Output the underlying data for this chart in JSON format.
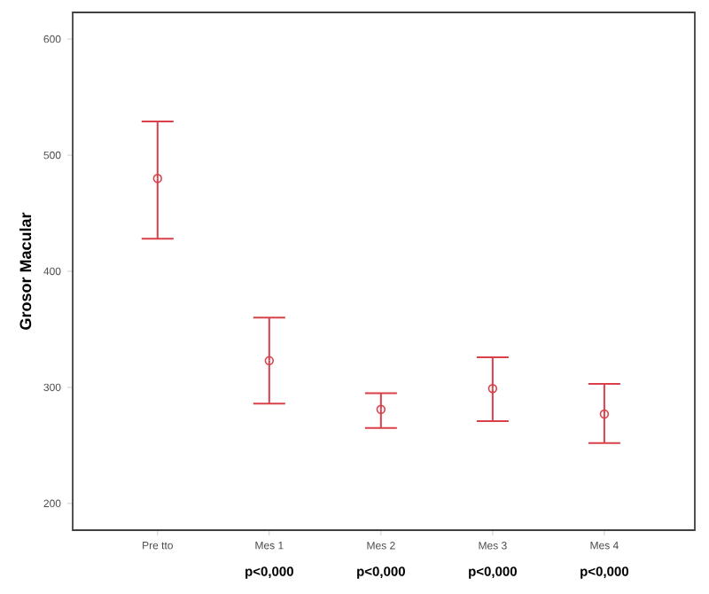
{
  "chart_data": {
    "type": "scatter",
    "ylabel": "Grosor Macular",
    "categories": [
      "Pre tto",
      "Mes 1",
      "Mes 2",
      "Mes 3",
      "Mes 4"
    ],
    "values": [
      480,
      323,
      281,
      299,
      277
    ],
    "errors": [
      [
        428,
        529
      ],
      [
        286,
        360
      ],
      [
        265,
        295
      ],
      [
        271,
        326
      ],
      [
        252,
        303
      ]
    ],
    "color": "#d9404a",
    "marker": "circle",
    "ylim": [
      177,
      623
    ],
    "yticks": [
      200,
      300,
      400,
      500,
      600
    ],
    "grid": false,
    "annotations": [
      "p<0,000",
      "p<0,000",
      "p<0,000",
      "p<0,000"
    ]
  }
}
